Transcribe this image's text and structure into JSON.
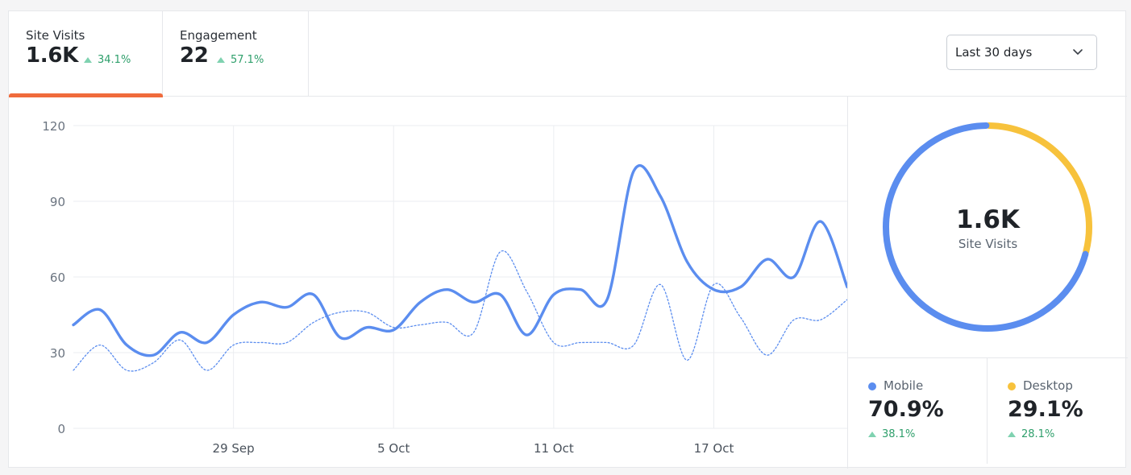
{
  "tabs": [
    {
      "label": "Site Visits",
      "value": "1.6K",
      "delta": "34.1%"
    },
    {
      "label": "Engagement",
      "value": "22",
      "delta": "57.1%"
    }
  ],
  "range_select": {
    "value": "Last 30 days"
  },
  "colors": {
    "mobile": "#5b8def",
    "desktop": "#f7c23c",
    "accent": "#f06b3c",
    "positive": "#2e9f6b"
  },
  "chart_data": {
    "type": "line",
    "ylim": [
      0,
      120
    ],
    "yticks": [
      "0",
      "30",
      "60",
      "90",
      "120"
    ],
    "xticks": [
      "29 Sep",
      "5 Oct",
      "11 Oct",
      "17 Oct"
    ],
    "x": [
      "23 Sep",
      "24 Sep",
      "25 Sep",
      "26 Sep",
      "27 Sep",
      "28 Sep",
      "29 Sep",
      "30 Sep",
      "1 Oct",
      "2 Oct",
      "3 Oct",
      "4 Oct",
      "5 Oct",
      "6 Oct",
      "7 Oct",
      "8 Oct",
      "9 Oct",
      "10 Oct",
      "11 Oct",
      "12 Oct",
      "13 Oct",
      "14 Oct",
      "15 Oct",
      "16 Oct",
      "17 Oct",
      "18 Oct",
      "19 Oct",
      "20 Oct",
      "21 Oct",
      "22 Oct"
    ],
    "series": [
      {
        "style": "solid",
        "values": [
          41,
          47,
          33,
          29,
          38,
          34,
          45,
          50,
          48,
          53,
          36,
          40,
          39,
          50,
          55,
          50,
          53,
          37,
          53,
          55,
          51,
          102,
          92,
          66,
          55,
          56,
          67,
          60,
          82,
          56
        ]
      },
      {
        "style": "dotted",
        "values": [
          23,
          33,
          23,
          26,
          35,
          23,
          33,
          34,
          34,
          42,
          46,
          46,
          40,
          41,
          42,
          38,
          70,
          54,
          34,
          34,
          34,
          33,
          57,
          27,
          57,
          44,
          29,
          43,
          43,
          51
        ]
      }
    ]
  },
  "donut": {
    "value": "1.6K",
    "label": "Site Visits",
    "segments": [
      {
        "name": "Mobile",
        "fraction": 0.709
      },
      {
        "name": "Desktop",
        "fraction": 0.291
      }
    ]
  },
  "legend": [
    {
      "name": "Mobile",
      "pct": "70.9%",
      "delta": "38.1%"
    },
    {
      "name": "Desktop",
      "pct": "29.1%",
      "delta": "28.1%"
    }
  ]
}
